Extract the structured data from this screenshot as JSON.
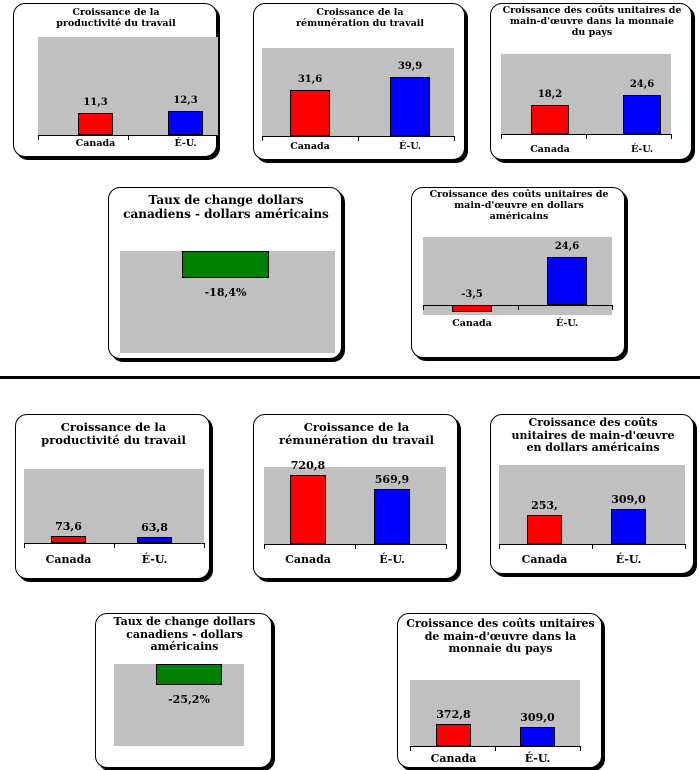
{
  "colors": {
    "canada": "#ff0000",
    "us": "#0000ff",
    "exchange": "#008000",
    "plot_bg": "#c0c0c0"
  },
  "chart_data": [
    {
      "id": "c1",
      "type": "bar",
      "title": "Croissance de la productivité du travail",
      "categories": [
        "Canada",
        "É-U."
      ],
      "values": [
        11.3,
        12.3
      ],
      "labels": [
        "11,3",
        "12,3"
      ],
      "ylim": [
        0,
        50
      ]
    },
    {
      "id": "c2",
      "type": "bar",
      "title": "Croissance de la rémunération du travail",
      "categories": [
        "Canada",
        "É-U."
      ],
      "values": [
        31.6,
        39.9
      ],
      "labels": [
        "31,6",
        "39,9"
      ],
      "ylim": [
        0,
        60
      ]
    },
    {
      "id": "c3",
      "type": "bar",
      "title": "Croissance des coûts unitaires de main-d'œuvre dans la monnaie du pays",
      "categories": [
        "Canada",
        "É-U."
      ],
      "values": [
        18.2,
        24.6
      ],
      "labels": [
        "18,2",
        "24,6"
      ],
      "ylim": [
        0,
        50
      ]
    },
    {
      "id": "c4",
      "type": "bar",
      "title": "Taux de change dollars canadiens - dollars américains",
      "categories": [
        ""
      ],
      "values": [
        -18.4
      ],
      "labels": [
        "-18,4%"
      ],
      "ylim": [
        -70,
        0
      ]
    },
    {
      "id": "c5",
      "type": "bar",
      "title": "Croissance des coûts unitaires de main-d'œuvre en dollars américains",
      "categories": [
        "Canada",
        "É-U."
      ],
      "values": [
        -3.5,
        24.6
      ],
      "labels": [
        "-3,5",
        "24,6"
      ],
      "ylim": [
        -5,
        35
      ]
    },
    {
      "id": "c6",
      "type": "bar",
      "title": "Croissance de la productivité du travail",
      "categories": [
        "Canada",
        "É-U."
      ],
      "values": [
        73.6,
        63.8
      ],
      "labels": [
        "73,6",
        "63,8"
      ],
      "ylim": [
        0,
        800
      ]
    },
    {
      "id": "c7",
      "type": "bar",
      "title": "Croissance de la rémunération du travail",
      "categories": [
        "Canada",
        "É-U."
      ],
      "values": [
        720.8,
        569.9
      ],
      "labels": [
        "720,8",
        "569,9"
      ],
      "ylim": [
        0,
        800
      ]
    },
    {
      "id": "c8",
      "type": "bar",
      "title": "Croissance des coûts unitaires de main-d'œuvre en dollars américains",
      "categories": [
        "Canada",
        "É-U."
      ],
      "values": [
        253,
        309.0
      ],
      "labels": [
        "253,",
        "309,0"
      ],
      "ylim": [
        0,
        700
      ]
    },
    {
      "id": "c9",
      "type": "bar",
      "title": "Taux de change dollars canadiens - dollars américains",
      "categories": [
        ""
      ],
      "values": [
        -25.2
      ],
      "labels": [
        "-25,2%"
      ],
      "ylim": [
        -100,
        0
      ]
    },
    {
      "id": "c10",
      "type": "bar",
      "title": "Croissance des coûts unitaires de main-d'œuvre dans la monnaie du pays",
      "categories": [
        "Canada",
        "É-U."
      ],
      "values": [
        372.8,
        309.0
      ],
      "labels": [
        "372,8",
        "309,0"
      ],
      "ylim": [
        0,
        1100
      ]
    }
  ]
}
